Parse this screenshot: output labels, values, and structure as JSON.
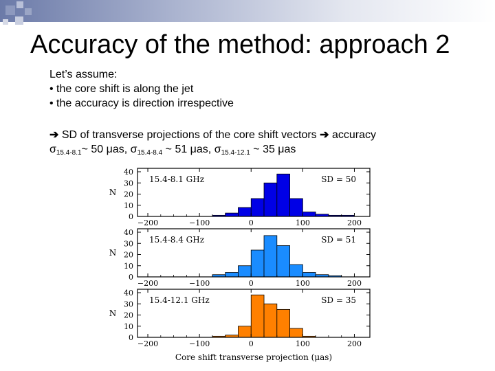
{
  "slide": {
    "title": "Accuracy of the method: approach 2",
    "assume_heading": "Let’s assume:",
    "bullets": [
      "• the core shift is along the jet",
      "• the accuracy is direction irrespective"
    ],
    "sd_line": {
      "arrow": "➔",
      "text": " SD of transverse projections of the core shift vectors ",
      "suffix": " accuracy"
    },
    "sigma_line": {
      "s1": "σ",
      "s1_sub": "15.4-8.1",
      "s1_val": "~ 50 μas, ",
      "s2": "σ",
      "s2_sub": "15.4-8.4",
      "s2_val": " ~ 51 μas, ",
      "s3": "σ",
      "s3_sub": "15.4-12.1",
      "s3_val": " ~ 35 μas"
    }
  },
  "chart_data": [
    {
      "type": "bar",
      "label": "15.4-8.1 GHz",
      "sd_label": "SD = 50",
      "color": "#0000e6",
      "bin_width": 25,
      "bin_starts": [
        -200,
        -175,
        -150,
        -125,
        -100,
        -75,
        -50,
        -25,
        0,
        25,
        50,
        75,
        100,
        125,
        150,
        175
      ],
      "values": [
        0,
        0,
        0,
        0,
        0,
        1,
        3,
        8,
        16,
        30,
        38,
        16,
        4,
        2,
        1,
        1
      ],
      "ylim": [
        0,
        40
      ],
      "yticks": [
        0,
        10,
        20,
        30,
        40
      ],
      "xticks": [
        -200,
        -100,
        0,
        100,
        200
      ],
      "ylabel": "N"
    },
    {
      "type": "bar",
      "label": "15.4-8.4 GHz",
      "sd_label": "SD = 51",
      "color": "#1a8cff",
      "bin_width": 25,
      "bin_starts": [
        -200,
        -175,
        -150,
        -125,
        -100,
        -75,
        -50,
        -25,
        0,
        25,
        50,
        75,
        100,
        125,
        150,
        175
      ],
      "values": [
        0,
        0,
        0,
        0,
        0,
        2,
        4,
        10,
        24,
        37,
        28,
        11,
        4,
        2,
        1,
        0
      ],
      "ylim": [
        0,
        40
      ],
      "yticks": [
        0,
        10,
        20,
        30,
        40
      ],
      "xticks": [
        -200,
        -100,
        0,
        100,
        200
      ],
      "ylabel": "N"
    },
    {
      "type": "bar",
      "label": "15.4-12.1 GHz",
      "sd_label": "SD = 35",
      "color": "#ff8000",
      "bin_width": 25,
      "bin_starts": [
        -200,
        -175,
        -150,
        -125,
        -100,
        -75,
        -50,
        -25,
        0,
        25,
        50,
        75,
        100,
        125,
        150,
        175
      ],
      "values": [
        0,
        0,
        0,
        0,
        0,
        1,
        2,
        10,
        38,
        30,
        25,
        8,
        1,
        0,
        0,
        0
      ],
      "ylim": [
        0,
        40
      ],
      "yticks": [
        0,
        10,
        20,
        30,
        40
      ],
      "xticks": [
        -200,
        -100,
        0,
        100,
        200
      ],
      "ylabel": "N"
    }
  ],
  "xlabel": "Core shift transverse projection (μas)"
}
